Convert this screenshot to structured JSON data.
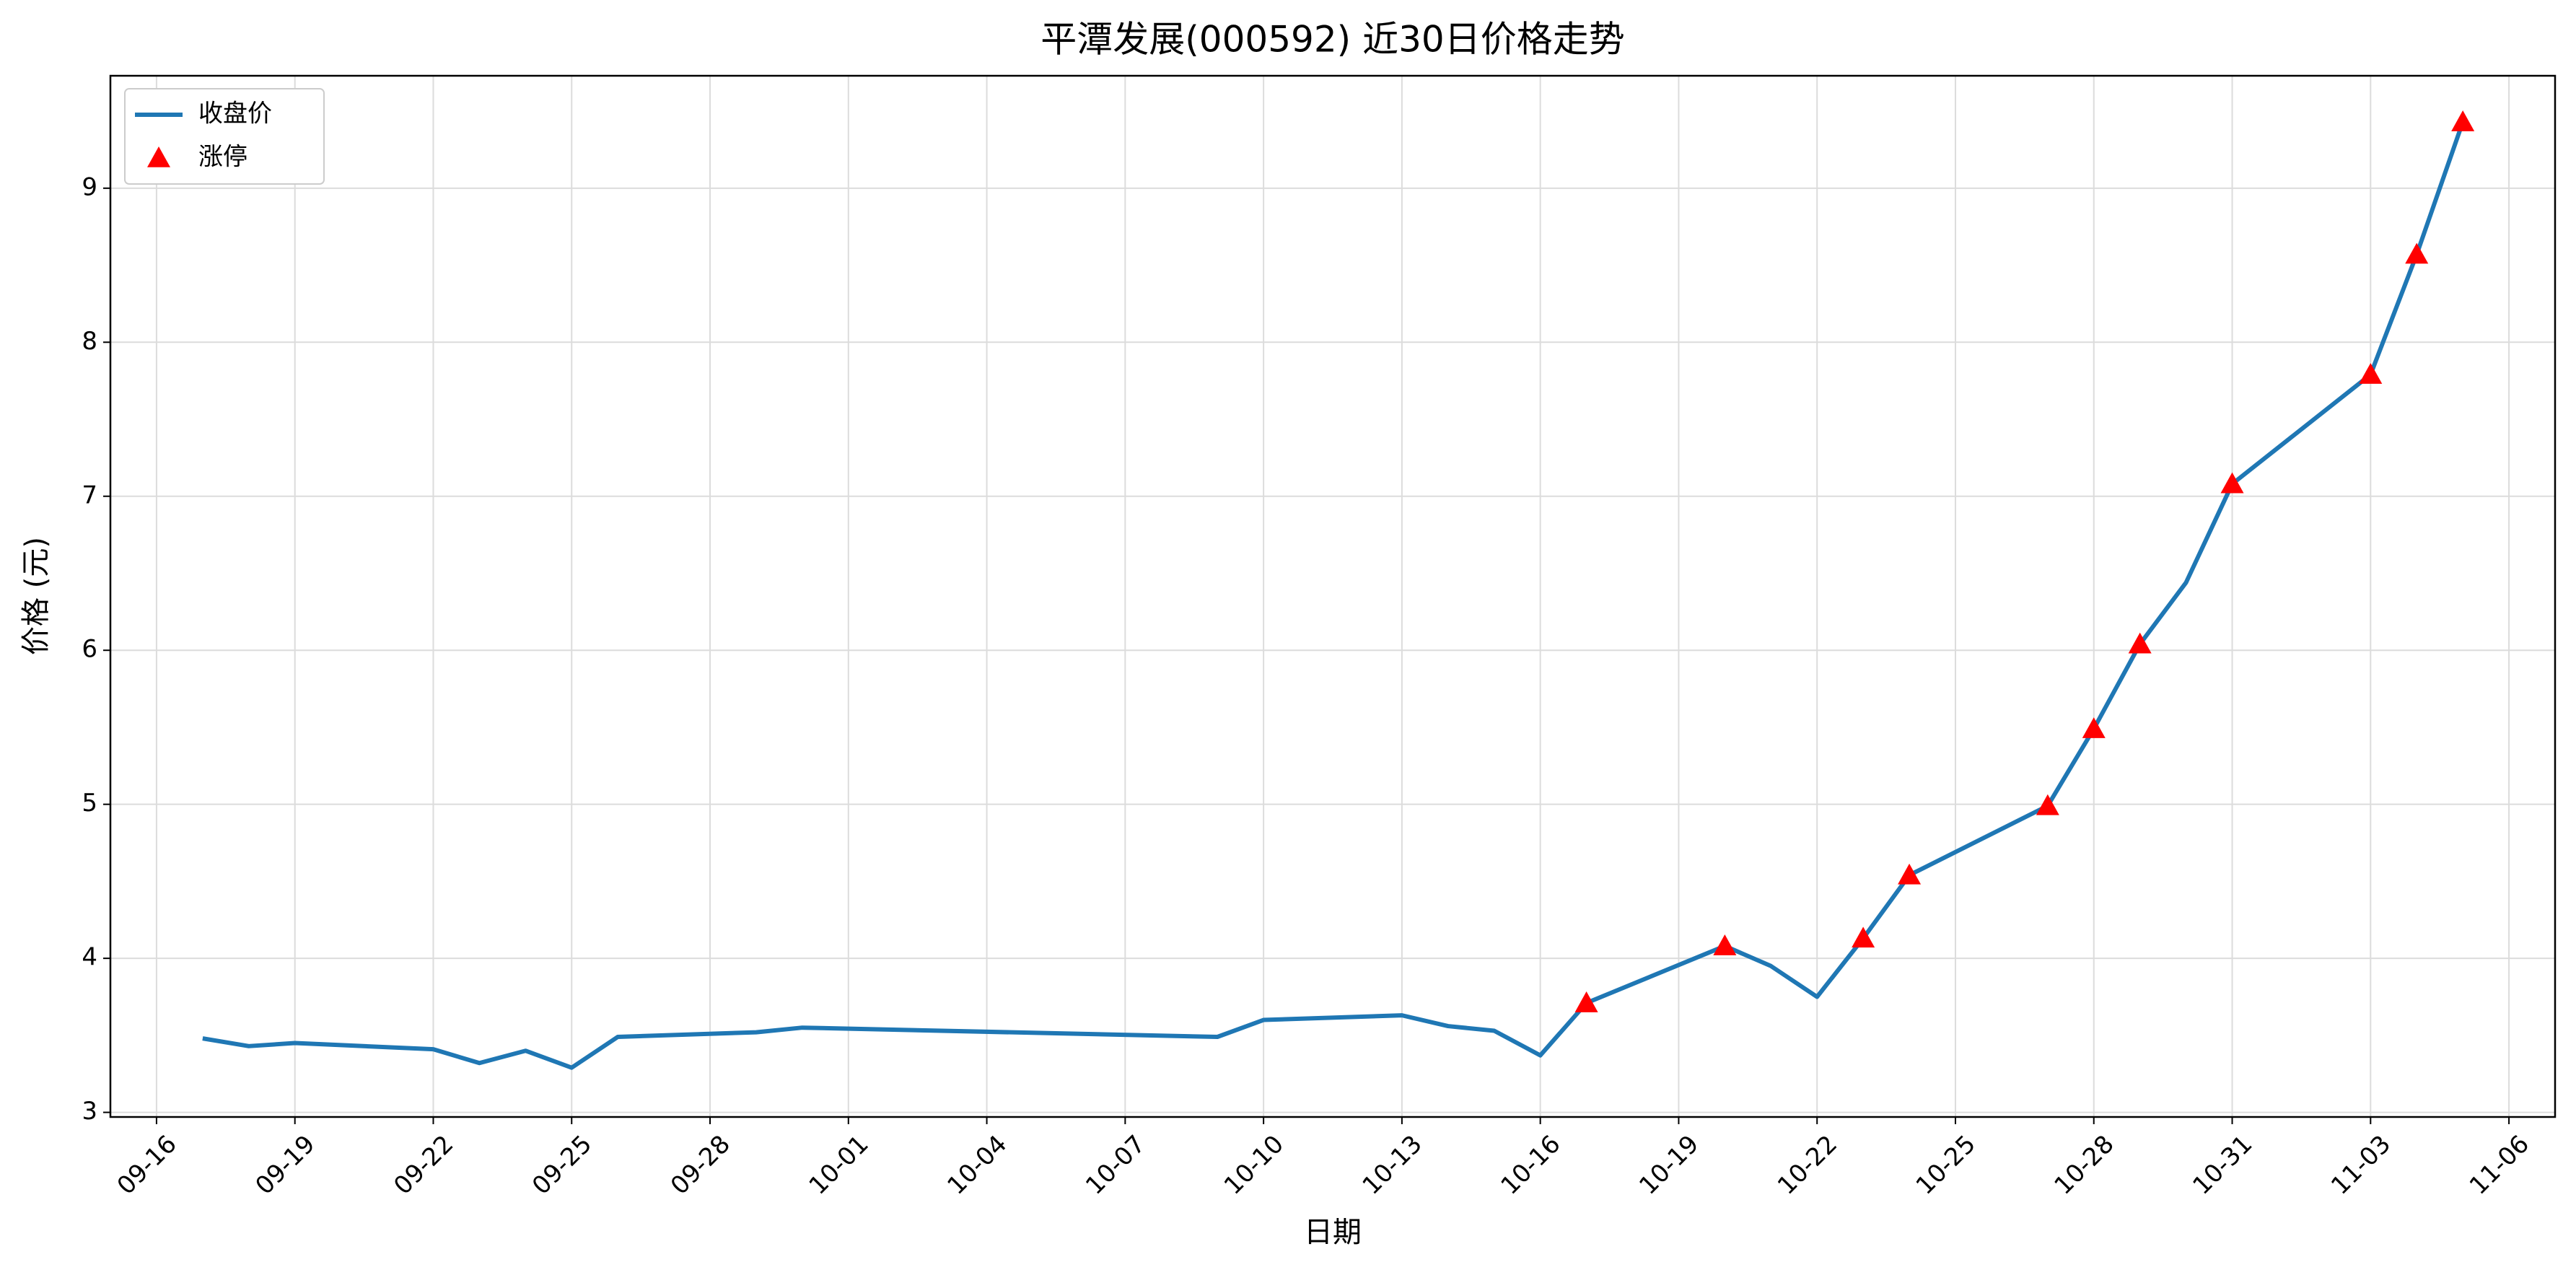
{
  "chart_data": {
    "type": "line",
    "title": "平潭发展(000592) 近30日价格走势",
    "x_label": "日期",
    "y_label": "价格 (元)",
    "xlim": [
      "09-15",
      "11-07"
    ],
    "xticks": [
      "09-16",
      "09-19",
      "09-22",
      "09-25",
      "09-28",
      "10-01",
      "10-04",
      "10-07",
      "10-10",
      "10-13",
      "10-16",
      "10-19",
      "10-22",
      "10-25",
      "10-28",
      "10-31",
      "11-03",
      "11-06"
    ],
    "ylim": [
      2.97,
      9.73
    ],
    "yticks": [
      3,
      4,
      5,
      6,
      7,
      8,
      9
    ],
    "grid": true,
    "legend": "upper left",
    "series": [
      {
        "name": "收盘价",
        "color": "#1f77b4",
        "mark": "line",
        "x": [
          "09-17",
          "09-18",
          "09-19",
          "09-22",
          "09-23",
          "09-24",
          "09-25",
          "09-26",
          "09-29",
          "09-30",
          "10-09",
          "10-10",
          "10-13",
          "10-14",
          "10-15",
          "10-16",
          "10-17",
          "10-20",
          "10-21",
          "10-22",
          "10-23",
          "10-24",
          "10-27",
          "10-28",
          "10-29",
          "10-30",
          "10-31",
          "11-03",
          "11-04",
          "11-05"
        ],
        "values": [
          3.48,
          3.43,
          3.45,
          3.41,
          3.32,
          3.4,
          3.29,
          3.49,
          3.52,
          3.55,
          3.49,
          3.6,
          3.63,
          3.56,
          3.53,
          3.37,
          3.71,
          4.08,
          3.95,
          3.75,
          4.13,
          4.54,
          4.99,
          5.49,
          6.04,
          6.44,
          7.08,
          7.79,
          8.57,
          9.43
        ]
      },
      {
        "name": "涨停",
        "color": "#ff0000",
        "mark": "triangle",
        "x": [
          "10-17",
          "10-20",
          "10-23",
          "10-24",
          "10-27",
          "10-28",
          "10-29",
          "10-31",
          "11-03",
          "11-04",
          "11-05"
        ],
        "values": [
          3.71,
          4.08,
          4.13,
          4.54,
          4.99,
          5.49,
          6.04,
          7.08,
          7.79,
          8.57,
          9.43
        ]
      }
    ]
  }
}
